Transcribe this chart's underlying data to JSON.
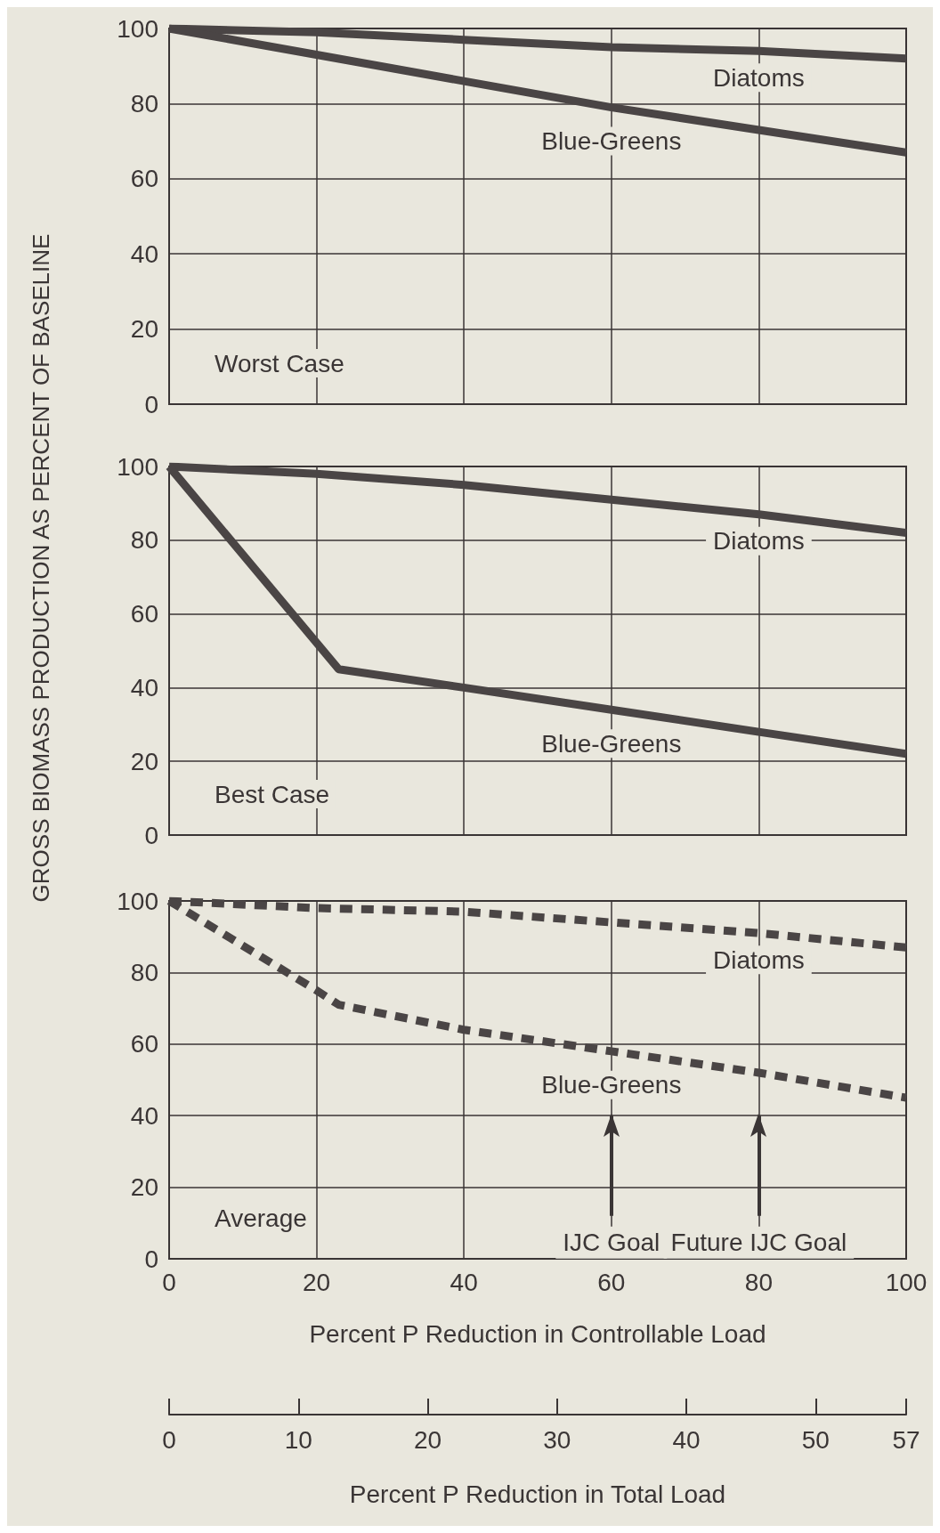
{
  "chart_data": [
    {
      "type": "line",
      "title": "Worst Case",
      "xlim": [
        0,
        100
      ],
      "xticks": [
        0,
        20,
        40,
        60,
        80,
        100
      ],
      "ylim": [
        0,
        100
      ],
      "yticks": [
        0,
        20,
        40,
        60,
        80,
        100
      ],
      "grid": true,
      "tick_labels": "y",
      "series": [
        {
          "name": "Diatoms",
          "color": "#4a4545",
          "x": [
            0,
            20,
            40,
            60,
            80,
            100
          ],
          "values": [
            100,
            99,
            97,
            95,
            94,
            92
          ]
        },
        {
          "name": "Blue-Greens",
          "color": "#4a4545",
          "x": [
            0,
            20,
            40,
            60,
            80,
            100
          ],
          "values": [
            100,
            93,
            86,
            79,
            73,
            67
          ]
        }
      ]
    },
    {
      "type": "line",
      "title": "Best Case",
      "ylabel": "GROSS BIOMASS PRODUCTION AS PERCENT OF BASELINE",
      "xlim": [
        0,
        100
      ],
      "xticks": [
        0,
        20,
        40,
        60,
        80,
        100
      ],
      "ylim": [
        0,
        100
      ],
      "yticks": [
        0,
        20,
        40,
        60,
        80,
        100
      ],
      "grid": true,
      "tick_labels": "y",
      "series": [
        {
          "name": "Diatoms",
          "color": "#4a4545",
          "x": [
            0,
            20,
            40,
            60,
            80,
            100
          ],
          "values": [
            100,
            98,
            95,
            91,
            87,
            82
          ]
        },
        {
          "name": "Blue-Greens",
          "color": "#4a4545",
          "x": [
            0,
            23,
            40,
            60,
            80,
            100
          ],
          "values": [
            100,
            45,
            40,
            34,
            28,
            22
          ]
        }
      ]
    },
    {
      "type": "line",
      "title": "Average",
      "xlabel": "Percent P Reduction in Controllable Load",
      "x2label": "Percent P Reduction in Total Load",
      "xlim": [
        0,
        100
      ],
      "xticks": [
        0,
        20,
        40,
        60,
        80,
        100
      ],
      "x2lim": [
        0,
        57
      ],
      "x2ticks": [
        0,
        10,
        20,
        30,
        40,
        50,
        57
      ],
      "ylim": [
        0,
        100
      ],
      "yticks": [
        0,
        20,
        40,
        60,
        80,
        100
      ],
      "grid": true,
      "line_style": "dashed",
      "ref_lines": [
        {
          "axis": "x",
          "value": 60,
          "label": "IJC Goal"
        },
        {
          "axis": "x",
          "value": 80,
          "label": "Future IJC Goal"
        }
      ],
      "series": [
        {
          "name": "Diatoms",
          "color": "#4a4545",
          "x": [
            0,
            20,
            40,
            60,
            80,
            100
          ],
          "values": [
            100,
            98,
            97,
            94,
            91,
            87
          ]
        },
        {
          "name": "Blue-Greens",
          "color": "#4a4545",
          "x": [
            0,
            20,
            23,
            40,
            60,
            80,
            100
          ],
          "values": [
            100,
            75,
            71,
            64,
            58,
            52,
            45
          ]
        }
      ]
    }
  ]
}
